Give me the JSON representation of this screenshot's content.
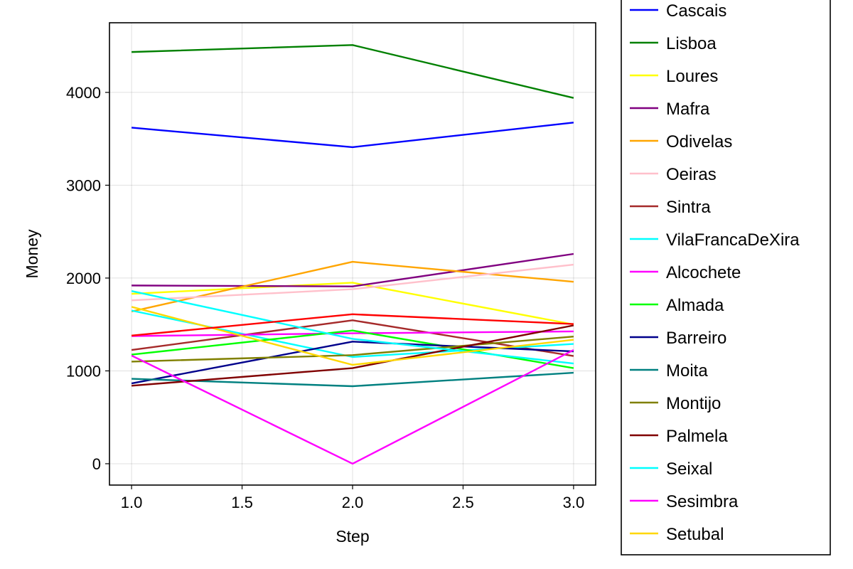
{
  "chart_data": {
    "type": "line",
    "title": "",
    "xlabel": "Step",
    "ylabel": "Money",
    "x": [
      1,
      2,
      3
    ],
    "xlim": [
      0.9,
      3.1
    ],
    "ylim": [
      -230,
      4750
    ],
    "xticks": [
      1.0,
      1.5,
      2.0,
      2.5,
      3.0
    ],
    "xtick_labels": [
      "1.0",
      "1.5",
      "2.0",
      "2.5",
      "3.0"
    ],
    "yticks": [
      0,
      1000,
      2000,
      3000,
      4000
    ],
    "ytick_labels": [
      "0",
      "1000",
      "2000",
      "3000",
      "4000"
    ],
    "grid": true,
    "legend_position": "right",
    "series": [
      {
        "name": "Cascais",
        "color": "#0000ff",
        "values": [
          3620,
          3410,
          3675
        ]
      },
      {
        "name": "Lisboa",
        "color": "#008000",
        "values": [
          4435,
          4510,
          3940
        ]
      },
      {
        "name": "Loures",
        "color": "#ffff00",
        "values": [
          1830,
          1950,
          1500
        ]
      },
      {
        "name": "Mafra",
        "color": "#800080",
        "values": [
          1920,
          1910,
          2260
        ]
      },
      {
        "name": "Odivelas",
        "color": "#ffa500",
        "values": [
          1640,
          2175,
          1960
        ]
      },
      {
        "name": "Oeiras",
        "color": "#ffc0cb",
        "values": [
          1760,
          1880,
          2145
        ]
      },
      {
        "name": "Sintra",
        "color": "#a52a2a",
        "values": [
          1225,
          1545,
          1160
        ]
      },
      {
        "name": "VilaFrancaDeXira",
        "color": "#00ffff",
        "values": [
          1650,
          1150,
          1290
        ]
      },
      {
        "name": "Alcochete",
        "color": "#ff00ff",
        "values": [
          1375,
          1405,
          1425
        ]
      },
      {
        "name": "Almada",
        "color": "#00ff00",
        "values": [
          1175,
          1435,
          1030
        ]
      },
      {
        "name": "Barreiro",
        "color": "#00008b",
        "values": [
          865,
          1315,
          1210
        ]
      },
      {
        "name": "Moita",
        "color": "#008080",
        "values": [
          915,
          835,
          980
        ]
      },
      {
        "name": "Montijo",
        "color": "#808000",
        "values": [
          1100,
          1170,
          1370
        ]
      },
      {
        "name": "Palmela",
        "color": "#800000",
        "values": [
          840,
          1030,
          1490
        ]
      },
      {
        "name": "Seixal",
        "color": "#00ffff",
        "values": [
          1860,
          1345,
          1080
        ]
      },
      {
        "name": "Sesimbra",
        "color": "#ff00ff",
        "values": [
          1165,
          0,
          1225
        ]
      },
      {
        "name": "Setubal",
        "color": "#ffd700",
        "values": [
          1690,
          1065,
          1335
        ]
      },
      {
        "name": "",
        "color": "#ff0000",
        "values": [
          1380,
          1610,
          1505
        ]
      }
    ]
  }
}
